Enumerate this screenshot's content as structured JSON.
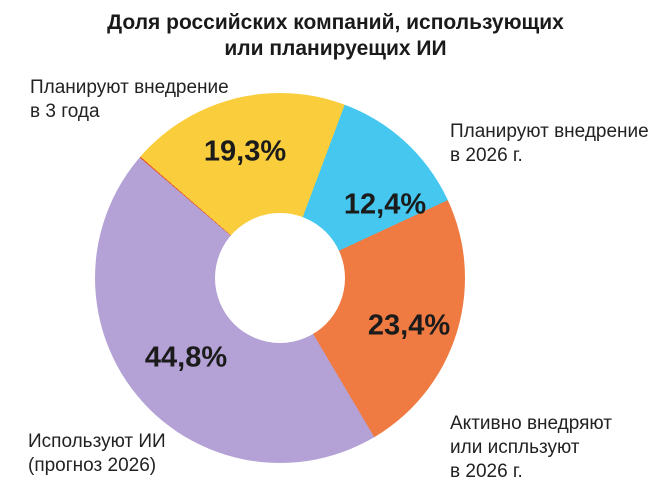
{
  "title": "Доля российских компаний, использующих\nили планируещих ИИ",
  "chart_data": {
    "type": "pie",
    "subtype": "donut",
    "title": "Доля российских компаний, использующих или планируещих ИИ",
    "start_angle_deg": -49,
    "donut_hole_ratio": 0.35,
    "legend_position": "none",
    "labels_outside": true,
    "value_suffix": "%",
    "segments": [
      {
        "label": "Планируют внедрение\nв 3 года",
        "value": 19.3,
        "value_label": "19,3%",
        "color": "#F9CD3C"
      },
      {
        "label": "Планируют внедрение\nв 2026 г.",
        "value": 12.4,
        "value_label": "12,4%",
        "color": "#45C7F0"
      },
      {
        "label": "Активно внедряют\nили испльзуют\nв 2026 г.",
        "value": 23.4,
        "value_label": "23,4%",
        "color": "#F07B42"
      },
      {
        "label": "Используют ИИ\n(прогноз 2026)",
        "value": 44.8,
        "value_label": "44,8%",
        "color": "#B4A2D6"
      },
      {
        "label": "",
        "value": 0.1,
        "value_label": "",
        "color": "#E8562B"
      }
    ]
  }
}
